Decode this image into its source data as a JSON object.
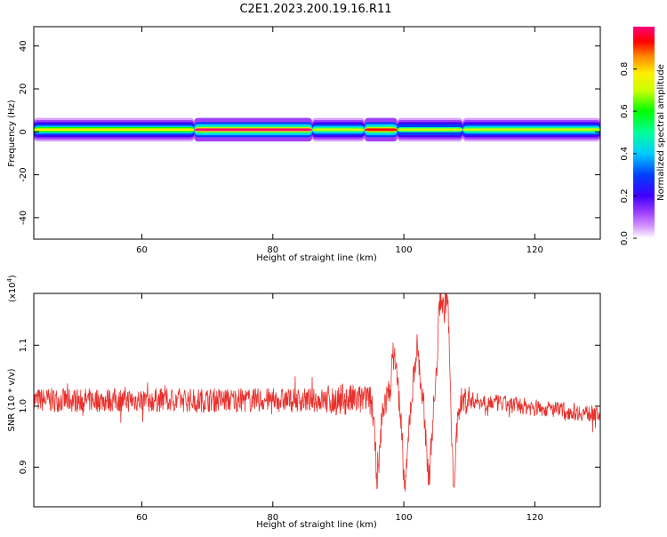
{
  "title": "C2E1.2023.200.19.16.R11",
  "colors": {
    "snr_line": "#e8302c",
    "axis": "#000000"
  },
  "chart_data": [
    {
      "type": "heatmap",
      "xlabel": "Height of straight line (km)",
      "ylabel": "Frequency (Hz)",
      "xlim": [
        43.5,
        130
      ],
      "ylim": [
        -50,
        49
      ],
      "xticks": [
        60,
        80,
        100,
        120
      ],
      "yticks": [
        -40,
        -20,
        0,
        20,
        40
      ],
      "colorbar": {
        "label": "Normalized spectral amplitude",
        "range": [
          0,
          1
        ],
        "ticks": [
          "0.0",
          "0.2",
          "0.4",
          "0.6",
          "0.8"
        ],
        "colors": [
          "#ffffff",
          "#c864ff",
          "#6a00ff",
          "#0000ff",
          "#00ccff",
          "#00ff99",
          "#00ff00",
          "#ffff00",
          "#ff9900",
          "#ff0000",
          "#ff0077"
        ]
      },
      "band": {
        "center_hz": 1,
        "stretches": [
          {
            "x0": 43.5,
            "x1": 68,
            "amp": 0.7
          },
          {
            "x0": 68,
            "x1": 86,
            "amp": 0.9
          },
          {
            "x0": 86,
            "x1": 94,
            "amp": 0.6
          },
          {
            "x0": 94,
            "x1": 99,
            "amp": 0.88
          },
          {
            "x0": 99,
            "x1": 109,
            "amp": 0.55
          },
          {
            "x0": 109,
            "x1": 130,
            "amp": 0.6
          }
        ]
      }
    },
    {
      "type": "line",
      "xlabel": "Height of straight line (km)",
      "ylabel": "SNR (10 * v/v)",
      "yscale_label": "(x10",
      "yscale_exp": "4",
      "yscale_close": ")",
      "xlim": [
        43.5,
        130
      ],
      "ylim": [
        0.835,
        1.185
      ],
      "xticks": [
        60,
        80,
        100,
        120
      ],
      "yticks": [
        "0.9",
        "1.0",
        "1.1"
      ],
      "ytick_values": [
        0.9,
        1.0,
        1.1
      ],
      "baseline": 1.01,
      "noise_amplitude": 0.02,
      "oscillations": [
        {
          "x": 96,
          "value": 0.885
        },
        {
          "x": 98.5,
          "value": 1.085
        },
        {
          "x": 100.2,
          "value": 0.87
        },
        {
          "x": 102,
          "value": 1.095
        },
        {
          "x": 103.8,
          "value": 0.89
        },
        {
          "x": 105.6,
          "value": 1.175
        },
        {
          "x": 106.6,
          "value": 1.18
        },
        {
          "x": 107.6,
          "value": 0.88
        }
      ]
    }
  ]
}
